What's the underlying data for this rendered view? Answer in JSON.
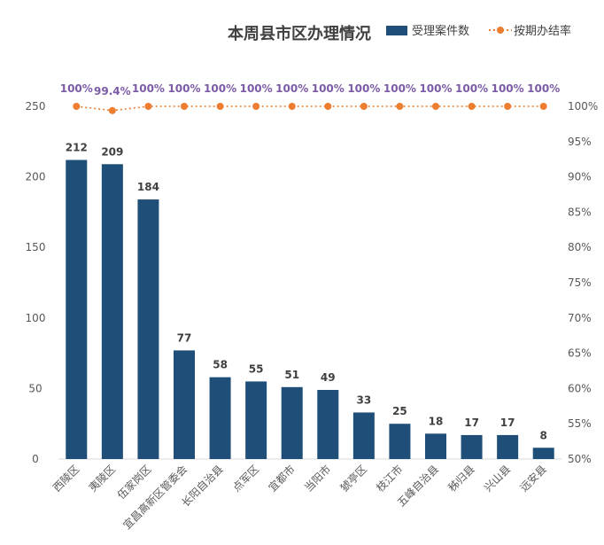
{
  "chart_data": {
    "type": "bar",
    "title": "本周县市区办理情况",
    "categories": [
      "西陵区",
      "夷陵区",
      "伍家岗区",
      "宜昌高新区管委会",
      "长阳自治县",
      "点军区",
      "宜都市",
      "当阳市",
      "猇亭区",
      "枝江市",
      "五峰自治县",
      "秭归县",
      "兴山县",
      "远安县"
    ],
    "series": [
      {
        "name": "受理案件数",
        "type": "bar",
        "axis": "left",
        "color": "#1f4e79",
        "values": [
          212,
          209,
          184,
          77,
          58,
          55,
          51,
          49,
          33,
          25,
          18,
          17,
          17,
          8
        ]
      },
      {
        "name": "按期办结率",
        "type": "line",
        "axis": "right",
        "color": "#ed7d31",
        "values": [
          100,
          99.4,
          100,
          100,
          100,
          100,
          100,
          100,
          100,
          100,
          100,
          100,
          100,
          100
        ],
        "labels": [
          "100%",
          "99.4%",
          "100%",
          "100%",
          "100%",
          "100%",
          "100%",
          "100%",
          "100%",
          "100%",
          "100%",
          "100%",
          "100%",
          "100%"
        ]
      }
    ],
    "ylim_left": [
      0,
      250
    ],
    "yticks_left": [
      "0",
      "50",
      "100",
      "150",
      "200",
      "250"
    ],
    "ylim_right": [
      50,
      100
    ],
    "yticks_right": [
      "50%",
      "55%",
      "60%",
      "65%",
      "70%",
      "75%",
      "80%",
      "85%",
      "90%",
      "95%",
      "100%"
    ],
    "legend": "top-right",
    "grid": false
  }
}
